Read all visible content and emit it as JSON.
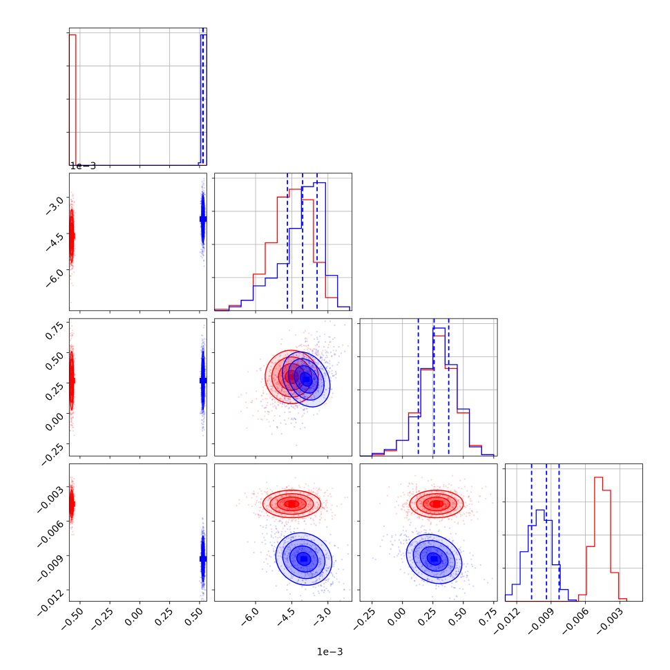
{
  "chart_data": {
    "type": "corner",
    "series": [
      {
        "name": "",
        "color": "#ff0000"
      },
      {
        "name": "",
        "color": "#0000ff"
      }
    ],
    "parameters": [
      {
        "index": 0,
        "range": [
          -0.59,
          0.56
        ],
        "ticks": [
          "−0.50",
          "−0.25",
          "0.00",
          "0.25",
          "0.50"
        ],
        "tick_values": [
          -0.5,
          -0.25,
          0.0,
          0.25,
          0.5
        ],
        "offset_text": ""
      },
      {
        "index": 1,
        "range": [
          -0.0077,
          -0.002
        ],
        "ticks": [
          "−6.0",
          "−4.5",
          "−3.0"
        ],
        "tick_values": [
          -0.006,
          -0.0045,
          -0.003
        ],
        "offset_text": "1e−3"
      },
      {
        "index": 2,
        "range": [
          -0.35,
          0.78
        ],
        "ticks": [
          "−0.25",
          "0.00",
          "0.25",
          "0.50",
          "0.75"
        ],
        "tick_values": [
          -0.25,
          0.0,
          0.25,
          0.5,
          0.75
        ],
        "offset_text": ""
      },
      {
        "index": 3,
        "range": [
          -0.013,
          -0.001
        ],
        "ticks": [
          "−0.012",
          "−0.009",
          "−0.006",
          "−0.003"
        ],
        "tick_values": [
          -0.012,
          -0.009,
          -0.006,
          -0.003
        ],
        "offset_text": ""
      }
    ],
    "diag_offset_text": "1e−3",
    "histograms": [
      {
        "param": 0,
        "red": {
          "edges": [
            -0.59,
            -0.535,
            0.5,
            0.56
          ],
          "counts": [
            1.0,
            0.0,
            0.0
          ]
        },
        "blue": {
          "edges": [
            -0.59,
            0.49,
            0.51,
            0.56
          ],
          "counts": [
            0.0,
            0.02,
            1.0
          ]
        },
        "quantiles_blue": [
          0.5275,
          0.529,
          0.5305
        ]
      },
      {
        "param": 1,
        "red": {
          "edges": [
            -0.0077,
            -0.0071,
            -0.0066,
            -0.0061,
            -0.0056,
            -0.0051,
            -0.0046,
            -0.0041,
            -0.0036,
            -0.0031,
            -0.0026,
            -0.0021
          ],
          "counts": [
            0.01,
            0.04,
            0.08,
            0.28,
            0.52,
            0.87,
            0.93,
            0.85,
            0.37,
            0.1,
            0.03
          ]
        },
        "blue": {
          "edges": [
            -0.0077,
            -0.0071,
            -0.0066,
            -0.0061,
            -0.0056,
            -0.0051,
            -0.0046,
            -0.0041,
            -0.0036,
            -0.0031,
            -0.0026,
            -0.0021
          ],
          "counts": [
            0.0,
            0.03,
            0.08,
            0.19,
            0.25,
            0.36,
            0.63,
            0.95,
            0.98,
            0.27,
            0.03
          ]
        },
        "quantiles_blue": [
          -0.00468,
          -0.00405,
          -0.00345
        ]
      },
      {
        "param": 2,
        "red": {
          "edges": [
            -0.35,
            -0.25,
            -0.15,
            -0.05,
            0.05,
            0.15,
            0.25,
            0.35,
            0.45,
            0.55,
            0.65,
            0.75
          ],
          "counts": [
            0.0,
            0.01,
            0.04,
            0.12,
            0.33,
            0.66,
            0.92,
            0.67,
            0.33,
            0.08,
            0.01
          ]
        },
        "blue": {
          "edges": [
            -0.35,
            -0.25,
            -0.15,
            -0.05,
            0.05,
            0.15,
            0.25,
            0.35,
            0.45,
            0.55,
            0.65,
            0.75
          ],
          "counts": [
            0.0,
            0.02,
            0.05,
            0.12,
            0.3,
            0.67,
            0.98,
            0.7,
            0.36,
            0.07,
            0.01
          ]
        },
        "quantiles_blue": [
          0.13,
          0.26,
          0.38
        ]
      },
      {
        "param": 3,
        "red": {
          "edges": [
            -0.013,
            -0.012,
            -0.011,
            -0.01,
            -0.009,
            -0.008,
            -0.0073,
            -0.0066,
            -0.0059,
            -0.0052,
            -0.0045,
            -0.0038,
            -0.0031,
            -0.0024
          ],
          "counts": [
            0,
            0,
            0,
            0,
            0,
            0,
            0,
            0.05,
            0.42,
            0.95,
            0.85,
            0.22,
            0.02
          ]
        },
        "blue": {
          "edges": [
            -0.013,
            -0.0124,
            -0.0117,
            -0.011,
            -0.0103,
            -0.0096,
            -0.0089,
            -0.0082,
            -0.0075,
            -0.0068
          ],
          "counts": [
            0.05,
            0.13,
            0.38,
            0.58,
            0.7,
            0.62,
            0.28,
            0.09,
            0.01
          ]
        },
        "quantiles_blue": [
          -0.0107,
          -0.0094,
          -0.0083
        ]
      }
    ],
    "pairs": [
      {
        "x": 0,
        "y": 1,
        "red": {
          "mean": [
            -0.57,
            -0.0046
          ],
          "sd": [
            0.008,
            0.00055
          ]
        },
        "blue": {
          "mean": [
            0.529,
            -0.0039
          ],
          "sd": [
            0.006,
            0.0005
          ]
        }
      },
      {
        "x": 0,
        "y": 2,
        "red": {
          "mean": [
            -0.57,
            0.27
          ],
          "sd": [
            0.008,
            0.12
          ]
        },
        "blue": {
          "mean": [
            0.529,
            0.27
          ],
          "sd": [
            0.006,
            0.12
          ]
        }
      },
      {
        "x": 0,
        "y": 3,
        "red": {
          "mean": [
            -0.57,
            -0.0045
          ],
          "sd": [
            0.008,
            0.0006
          ]
        },
        "blue": {
          "mean": [
            0.529,
            -0.0093
          ],
          "sd": [
            0.006,
            0.001
          ]
        }
      },
      {
        "x": 1,
        "y": 2,
        "red": {
          "mean": [
            -0.0045,
            0.3
          ],
          "sd": [
            0.00055,
            0.11
          ]
        },
        "blue": {
          "mean": [
            -0.0039,
            0.28
          ],
          "sd": [
            0.00045,
            0.12
          ]
        }
      },
      {
        "x": 1,
        "y": 3,
        "red": {
          "mean": [
            -0.0045,
            -0.0045
          ],
          "sd": [
            0.0006,
            0.0006
          ]
        },
        "blue": {
          "mean": [
            -0.004,
            -0.0093
          ],
          "sd": [
            0.0006,
            0.0011
          ]
        }
      },
      {
        "x": 2,
        "y": 3,
        "red": {
          "mean": [
            0.28,
            -0.0045
          ],
          "sd": [
            0.11,
            0.0006
          ]
        },
        "blue": {
          "mean": [
            0.26,
            -0.0093
          ],
          "sd": [
            0.12,
            0.001
          ]
        }
      }
    ],
    "grid": true
  }
}
